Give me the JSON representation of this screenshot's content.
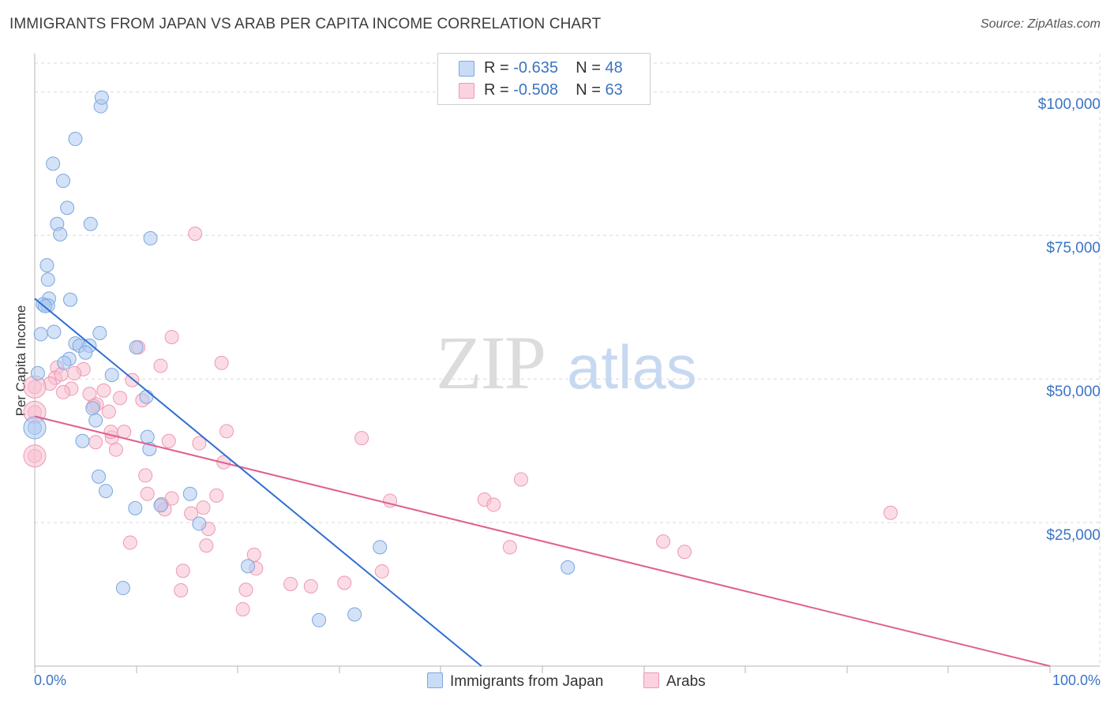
{
  "title": "IMMIGRANTS FROM JAPAN VS ARAB PER CAPITA INCOME CORRELATION CHART",
  "source": "Source: ZipAtlas.com",
  "watermark": {
    "zip": "ZIP",
    "atlas": "atlas"
  },
  "legend": {
    "rows": [
      {
        "r_label": "R = ",
        "r_value": "-0.635",
        "n_label": "N = ",
        "n_value": "48"
      },
      {
        "r_label": "R = ",
        "r_value": "-0.508",
        "n_label": "N = ",
        "n_value": "63"
      }
    ]
  },
  "bottom_legend": [
    "Immigrants from Japan",
    "Arabs"
  ],
  "colors": {
    "japan_fill": "#aecbf0",
    "japan_stroke": "#7aa7df",
    "japan_line": "#2f6fd0",
    "arab_fill": "#f7bfd0",
    "arab_stroke": "#ee98b4",
    "arab_line": "#e0608e",
    "grid": "#d9d9d9",
    "tick_text": "#3b74c4"
  },
  "chart_data": {
    "type": "scatter",
    "title": "IMMIGRANTS FROM JAPAN VS ARAB PER CAPITA INCOME CORRELATION CHART",
    "xlabel": "",
    "ylabel": "Per Capita Income",
    "xlim": [
      0,
      100
    ],
    "ylim": [
      0,
      105000
    ],
    "x_tick_labels": [
      "0.0%",
      "100.0%"
    ],
    "y_ticks": [
      {
        "value": 25000,
        "label": "$25,000"
      },
      {
        "value": 50000,
        "label": "$50,000"
      },
      {
        "value": 75000,
        "label": "$75,000"
      },
      {
        "value": 100000,
        "label": "$100,000"
      }
    ],
    "series": [
      {
        "name": "Immigrants from Japan",
        "r": -0.635,
        "n": 48,
        "trend": {
          "x0": 0,
          "y0": 64000,
          "x1": 44,
          "y1": 0
        },
        "points": [
          [
            6.5,
            97500
          ],
          [
            6.6,
            99000
          ],
          [
            4.0,
            91800
          ],
          [
            1.8,
            87500
          ],
          [
            2.8,
            84500
          ],
          [
            3.2,
            79800
          ],
          [
            2.2,
            77000
          ],
          [
            5.5,
            77000
          ],
          [
            2.5,
            75200
          ],
          [
            11.4,
            74500
          ],
          [
            1.2,
            69800
          ],
          [
            1.3,
            67300
          ],
          [
            1.4,
            64000
          ],
          [
            3.5,
            63800
          ],
          [
            0.8,
            63000
          ],
          [
            1.3,
            62800
          ],
          [
            0.6,
            57800
          ],
          [
            1.9,
            58200
          ],
          [
            6.4,
            58000
          ],
          [
            4.0,
            56200
          ],
          [
            4.4,
            55800
          ],
          [
            5.4,
            55800
          ],
          [
            10.0,
            55500
          ],
          [
            5.0,
            54600
          ],
          [
            3.4,
            53500
          ],
          [
            2.9,
            52800
          ],
          [
            7.6,
            50700
          ],
          [
            0.3,
            51000
          ],
          [
            0.0,
            41500
          ],
          [
            5.7,
            44900
          ],
          [
            6.0,
            42800
          ],
          [
            11.0,
            46900
          ],
          [
            11.1,
            39900
          ],
          [
            4.7,
            39200
          ],
          [
            11.3,
            37800
          ],
          [
            6.3,
            33000
          ],
          [
            7.0,
            30500
          ],
          [
            15.3,
            30000
          ],
          [
            9.9,
            27500
          ],
          [
            12.4,
            28000
          ],
          [
            16.2,
            24800
          ],
          [
            34.0,
            20700
          ],
          [
            21.0,
            17400
          ],
          [
            52.5,
            17200
          ],
          [
            8.7,
            13600
          ],
          [
            31.5,
            9000
          ],
          [
            28.0,
            8000
          ],
          [
            1.0,
            62700
          ]
        ]
      },
      {
        "name": "Arabs",
        "r": -0.508,
        "n": 63,
        "trend": {
          "x0": 0,
          "y0": 43500,
          "x1": 100,
          "y1": 0
        },
        "points": [
          [
            15.8,
            75300
          ],
          [
            13.5,
            57300
          ],
          [
            10.2,
            55500
          ],
          [
            18.4,
            52800
          ],
          [
            12.4,
            52300
          ],
          [
            2.2,
            52000
          ],
          [
            4.8,
            51700
          ],
          [
            3.9,
            51000
          ],
          [
            2.0,
            50200
          ],
          [
            9.6,
            49800
          ],
          [
            1.5,
            49200
          ],
          [
            0.0,
            48600
          ],
          [
            3.6,
            48300
          ],
          [
            6.8,
            48000
          ],
          [
            2.8,
            47700
          ],
          [
            5.4,
            47400
          ],
          [
            8.4,
            46700
          ],
          [
            10.6,
            46300
          ],
          [
            6.1,
            45600
          ],
          [
            5.8,
            45300
          ],
          [
            7.3,
            44300
          ],
          [
            0.0,
            44200
          ],
          [
            8.8,
            40800
          ],
          [
            18.9,
            40900
          ],
          [
            32.2,
            39700
          ],
          [
            7.6,
            39800
          ],
          [
            13.2,
            39200
          ],
          [
            6.0,
            39000
          ],
          [
            16.2,
            38800
          ],
          [
            8.0,
            37700
          ],
          [
            0.0,
            36600
          ],
          [
            18.6,
            35500
          ],
          [
            10.9,
            33200
          ],
          [
            47.9,
            32500
          ],
          [
            11.1,
            30000
          ],
          [
            13.5,
            29200
          ],
          [
            44.3,
            29000
          ],
          [
            12.5,
            28200
          ],
          [
            45.2,
            28100
          ],
          [
            35.0,
            28800
          ],
          [
            16.6,
            27600
          ],
          [
            12.8,
            27300
          ],
          [
            15.4,
            26600
          ],
          [
            84.3,
            26700
          ],
          [
            17.1,
            23900
          ],
          [
            9.4,
            21500
          ],
          [
            61.9,
            21700
          ],
          [
            16.9,
            21000
          ],
          [
            46.8,
            20700
          ],
          [
            64.0,
            19900
          ],
          [
            21.6,
            19400
          ],
          [
            14.6,
            16600
          ],
          [
            34.2,
            16500
          ],
          [
            21.8,
            17000
          ],
          [
            25.2,
            14300
          ],
          [
            30.5,
            14500
          ],
          [
            27.2,
            13900
          ],
          [
            14.4,
            13200
          ],
          [
            20.8,
            13300
          ],
          [
            20.5,
            9900
          ],
          [
            17.9,
            29700
          ],
          [
            2.6,
            50800
          ],
          [
            7.5,
            40800
          ]
        ]
      }
    ]
  }
}
